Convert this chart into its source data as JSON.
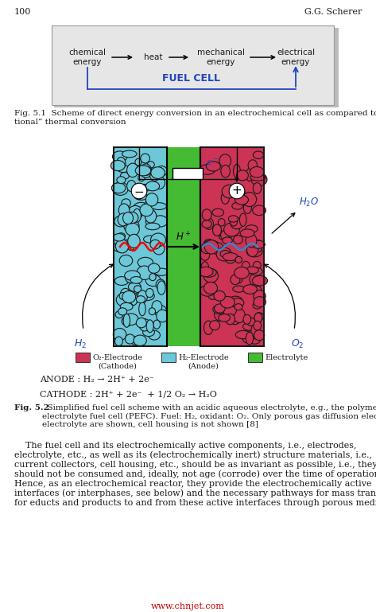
{
  "page_number": "100",
  "author": "G.G. Scherer",
  "fig1_boxes": [
    "chemical\nenergy",
    "heat",
    "mechanical\nenergy",
    "electrical\nenergy"
  ],
  "fig1_fuel_cell": "FUEL CELL",
  "fig1_caption": "Fig. 5.1  Scheme of direct energy conversion in an electrochemical cell as compared to “conven-\ntional” thermal conversion",
  "fig2_legend": [
    {
      "label": "O₂-Electrode\n(Cathode)",
      "color": "#c8354a"
    },
    {
      "label": "H₂-Electrode\n(Anode)",
      "color": "#5bbcd4"
    },
    {
      "label": "Electrolyte",
      "color": "#4aaa44"
    }
  ],
  "anode_eq": "ANODE : H₂ → 2H⁺ + 2e⁻",
  "cathode_eq": "CATHODE : 2H⁺ + 2e⁻  + 1/2 O₂ → H₂O",
  "fig2_caption_bold": "Fig. 5.2",
  "fig2_caption_rest": "  Simplified fuel cell scheme with an acidic aqueous electrolyte, e.g., the polymer\nelectrolyte fuel cell (PEFC). Fuel: H₂, oxidant: O₂. Only porous gas diffusion electrodes and\nelectrolyte are shown, cell housing is not shown [8]",
  "body_text_indent": "    The fuel cell and its electrochemically active components, i.e., electrodes,\nelectrolyte, etc., as well as its (electrochemically inert) structure materials, i.e.,\ncurrent collectors, cell housing, etc., should be as invariant as possible, i.e., they\nshould not be consumed and, ideally, not age (corrode) over the time of operation.\nHence, as an electrochemical reactor, they provide the electrochemically active\ninterfaces (or interphases, see below) and the necessary pathways for mass transport\nfor educts and products to and from these active interfaces through porous media",
  "watermark": "www.chnjet.com",
  "bg_color": "#ffffff",
  "fig1_bg": "#e6e6e6",
  "fig1_border": "#999999",
  "blue_color": "#2244bb",
  "text_color": "#1a1a1a",
  "red_color": "#cc0000"
}
